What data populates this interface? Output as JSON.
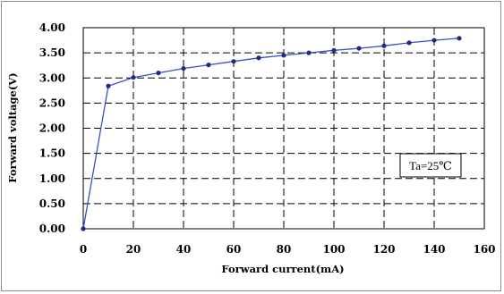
{
  "chart_data": {
    "type": "line",
    "xlabel": "Forward current(mA)",
    "ylabel": "Forward voltage(V)",
    "xlim": [
      0,
      160
    ],
    "ylim": [
      0,
      4
    ],
    "x_ticks": [
      "0",
      "20",
      "40",
      "60",
      "80",
      "100",
      "120",
      "140",
      "160"
    ],
    "y_ticks": [
      "0.00",
      "0.50",
      "1.00",
      "1.50",
      "2.00",
      "2.50",
      "3.00",
      "3.50",
      "4.00"
    ],
    "grid": "dashed",
    "annotation": "Ta=25℃",
    "annotation_position": "right",
    "series": [
      {
        "color": "#1f2a8a",
        "marker": "circle",
        "x": [
          0,
          10,
          20,
          30,
          40,
          50,
          60,
          70,
          80,
          90,
          100,
          110,
          120,
          130,
          140,
          150
        ],
        "y": [
          0.0,
          2.84,
          3.01,
          3.1,
          3.19,
          3.26,
          3.33,
          3.4,
          3.45,
          3.5,
          3.55,
          3.59,
          3.64,
          3.7,
          3.75,
          3.79
        ]
      }
    ]
  }
}
